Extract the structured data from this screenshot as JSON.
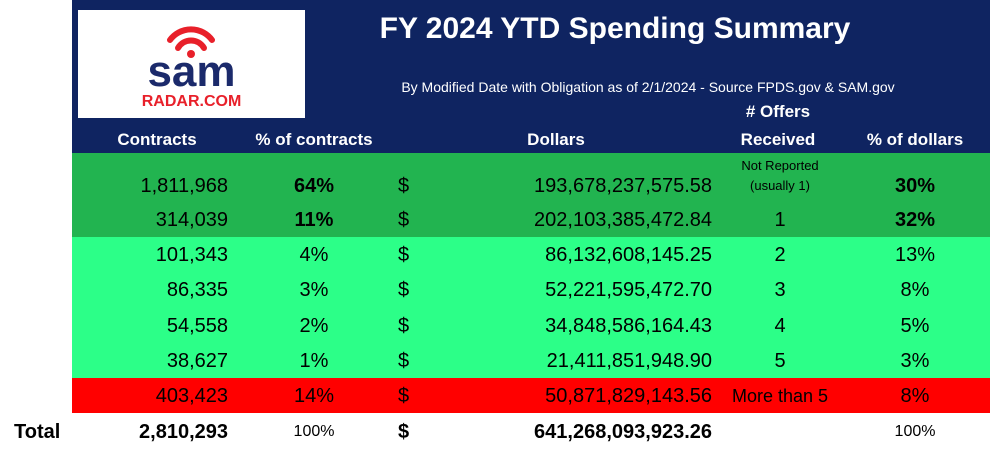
{
  "header": {
    "title": "FY 2024 YTD Spending Summary",
    "subtitle": "By Modified Date with Obligation as of 2/1/2024 - Source FPDS.gov & SAM.gov",
    "logo": {
      "word": "sam",
      "domain": "RADAR.COM"
    }
  },
  "table": {
    "columns": {
      "contracts": "Contracts",
      "pct_contracts": "% of contracts",
      "dollars": "Dollars",
      "offers": [
        "# Offers",
        "Received"
      ],
      "pct_dollars": "% of dollars"
    },
    "rows": [
      {
        "contracts": "1,811,968",
        "pct_contracts": "64%",
        "currency": "$",
        "dollars": "193,678,237,575.58",
        "offers": [
          "Not Reported",
          "(usually 1)"
        ],
        "pct_dollars": "30%"
      },
      {
        "contracts": "314,039",
        "pct_contracts": "11%",
        "currency": "$",
        "dollars": "202,103,385,472.84",
        "offers": "1",
        "pct_dollars": "32%"
      },
      {
        "contracts": "101,343",
        "pct_contracts": "4%",
        "currency": "$",
        "dollars": "86,132,608,145.25",
        "offers": "2",
        "pct_dollars": "13%"
      },
      {
        "contracts": "86,335",
        "pct_contracts": "3%",
        "currency": "$",
        "dollars": "52,221,595,472.70",
        "offers": "3",
        "pct_dollars": "8%"
      },
      {
        "contracts": "54,558",
        "pct_contracts": "2%",
        "currency": "$",
        "dollars": "34,848,586,164.43",
        "offers": "4",
        "pct_dollars": "5%"
      },
      {
        "contracts": "38,627",
        "pct_contracts": "1%",
        "currency": "$",
        "dollars": "21,411,851,948.90",
        "offers": "5",
        "pct_dollars": "3%"
      },
      {
        "contracts": "403,423",
        "pct_contracts": "14%",
        "currency": "$",
        "dollars": "50,871,829,143.56",
        "offers": "More than 5",
        "pct_dollars": "8%"
      }
    ],
    "total": {
      "label": "Total",
      "contracts": "2,810,293",
      "pct_contracts": "100%",
      "currency": "$",
      "dollars": "641,268,093,923.26",
      "pct_dollars": "100%"
    }
  }
}
